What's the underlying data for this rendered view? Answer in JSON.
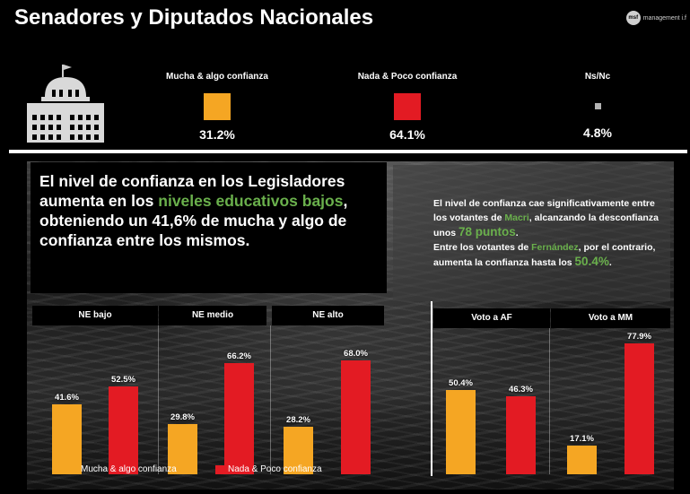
{
  "header": {
    "title": "Senadores y Diputados Nacionales",
    "brand_logo": "msf",
    "brand_text": "management i.f"
  },
  "summary": [
    {
      "label": "Mucha & algo confianza",
      "value": "31.2%",
      "color": "#f5a623"
    },
    {
      "label": "Nada & Poco confianza",
      "value": "64.1%",
      "color": "#e31b23"
    },
    {
      "label": "Ns/Nc",
      "value": "4.8%",
      "color": "#b3b3b3"
    }
  ],
  "callout_left": {
    "t1": "El nivel de confianza en los Legisladores aumenta en los ",
    "hl": "niveles educativos bajos",
    "t2": ", obteniendo un 41,6% de mucha y algo de confianza entre los mismos."
  },
  "callout_right": {
    "a": "El nivel de confianza cae significativamente entre los votantes de ",
    "macri": "Macri",
    "b": ", alcanzando la desconfianza unos ",
    "pts": "78 puntos",
    "c": ".",
    "d": "Entre los votantes de ",
    "fern": "Fernández",
    "e": ", por el contrario, aumenta la confianza hasta los ",
    "pct": "50.4%",
    "f": "."
  },
  "legend": {
    "mucha": "Mucha & algo confianza",
    "nada": "Nada & Poco confianza"
  },
  "chart_data": {
    "type": "bar",
    "groups": [
      "NE bajo",
      "NE medio",
      "NE alto",
      "Voto a AF",
      "Voto a MM"
    ],
    "series": [
      {
        "name": "Mucha & algo confianza",
        "color": "#f5a623",
        "values": [
          41.6,
          29.8,
          28.2,
          50.4,
          17.1
        ],
        "labels": [
          "41.6%",
          "29.8%",
          "28.2%",
          "50.4%",
          "17.1%"
        ]
      },
      {
        "name": "Nada & Poco confianza",
        "color": "#e31b23",
        "values": [
          52.5,
          66.2,
          68.0,
          46.3,
          77.9
        ],
        "labels": [
          "52.5%",
          "66.2%",
          "68.0%",
          "46.3%",
          "77.9%"
        ]
      }
    ],
    "ylim": [
      0,
      100
    ]
  }
}
